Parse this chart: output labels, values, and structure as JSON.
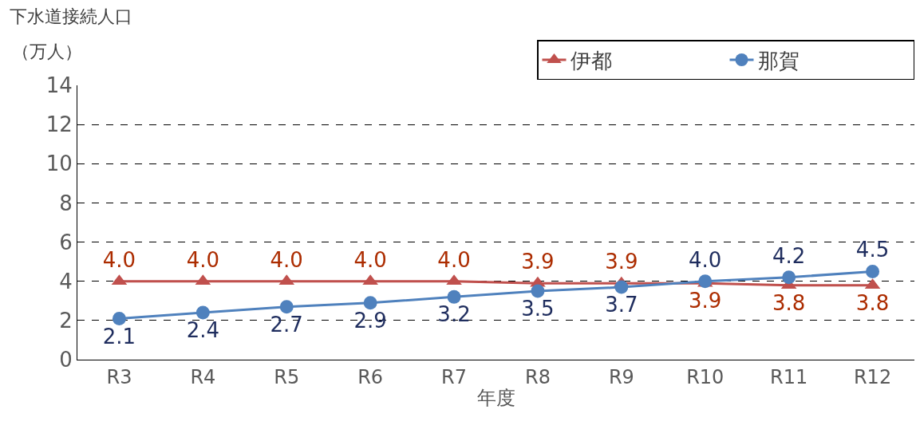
{
  "chart_data": {
    "type": "line",
    "ylabel": "下水道接続人口",
    "annotations": [
      "（万人）"
    ],
    "xlabel": "年度",
    "categories": [
      "R3",
      "R4",
      "R5",
      "R6",
      "R7",
      "R8",
      "R9",
      "R10",
      "R11",
      "R12"
    ],
    "series": [
      {
        "name": "伊都",
        "color": "#c0504d",
        "marker": "triangle",
        "values": [
          4.0,
          4.0,
          4.0,
          4.0,
          4.0,
          3.9,
          3.9,
          3.9,
          3.8,
          3.8
        ],
        "value_labels": [
          "4.0",
          "4.0",
          "4.0",
          "4.0",
          "4.0",
          "3.9",
          "3.9",
          "3.9",
          "3.8",
          "3.8"
        ]
      },
      {
        "name": "那賀",
        "color": "#4f81bd",
        "marker": "circle",
        "values": [
          2.1,
          2.4,
          2.7,
          2.9,
          3.2,
          3.5,
          3.7,
          4.0,
          4.2,
          4.5
        ],
        "value_labels": [
          "2.1",
          "2.4",
          "2.7",
          "2.9",
          "3.2",
          "3.5",
          "3.7",
          "4.0",
          "4.2",
          "4.5"
        ]
      }
    ],
    "ylim": [
      0,
      14
    ],
    "yticks": [
      0,
      2,
      4,
      6,
      8,
      10,
      12,
      14
    ],
    "grid": "y",
    "legend": "top right",
    "line_style": "solid"
  }
}
